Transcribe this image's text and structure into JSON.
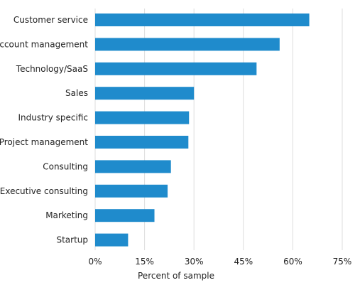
{
  "chart_data": {
    "type": "bar",
    "orientation": "horizontal",
    "categories": [
      "Customer service",
      "Account management",
      "Technology/SaaS",
      "Sales",
      "Industry specific",
      "Project management",
      "Consulting",
      "Executive consulting",
      "Marketing",
      "Startup"
    ],
    "values": [
      65,
      56,
      49,
      30,
      28.5,
      28.3,
      23,
      22,
      18,
      10
    ],
    "xlabel": "Percent of sample",
    "ylabel": "",
    "xlim": [
      0,
      75
    ],
    "x_ticks": [
      0,
      15,
      30,
      45,
      60,
      75
    ],
    "x_tick_labels": [
      "0%",
      "15%",
      "30%",
      "45%",
      "60%",
      "75%"
    ],
    "grid": "vertical",
    "bar_color": "#1f8bcc",
    "grid_color": "#dddddd"
  }
}
